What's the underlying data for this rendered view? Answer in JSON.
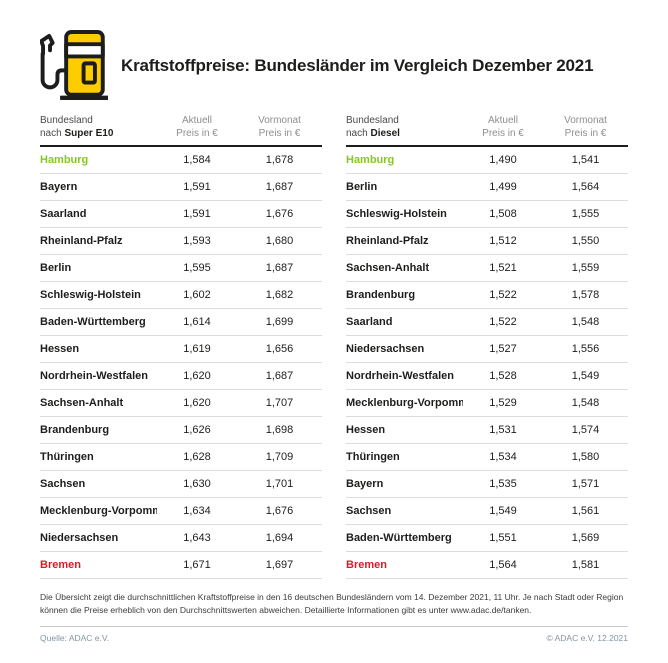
{
  "header": {
    "title": "Kraftstoffpreise: Bundesländer im Vergleich Dezember 2021",
    "icon": "fuel-pump-icon"
  },
  "colors": {
    "brand_yellow": "#ffcc00",
    "best_green": "#86c724",
    "worst_red": "#d01f27",
    "ink": "#1d1d1b",
    "muted_gray": "#8e8e8e",
    "footer_grayblue": "#8295a3"
  },
  "columns": {
    "aktuell": "Aktuell",
    "vormonat": "Vormonat",
    "unit": "Preis in €"
  },
  "tables": [
    {
      "label_line1": "Bundesland",
      "label_prefix": "nach ",
      "label_fuel": "Super E10",
      "rows": [
        {
          "state": "Hamburg",
          "aktuell": "1,584",
          "vormonat": "1,678",
          "highlight": "green"
        },
        {
          "state": "Bayern",
          "aktuell": "1,591",
          "vormonat": "1,687",
          "highlight": ""
        },
        {
          "state": "Saarland",
          "aktuell": "1,591",
          "vormonat": "1,676",
          "highlight": ""
        },
        {
          "state": "Rheinland-Pfalz",
          "aktuell": "1,593",
          "vormonat": "1,680",
          "highlight": ""
        },
        {
          "state": "Berlin",
          "aktuell": "1,595",
          "vormonat": "1,687",
          "highlight": ""
        },
        {
          "state": "Schleswig-Holstein",
          "aktuell": "1,602",
          "vormonat": "1,682",
          "highlight": ""
        },
        {
          "state": "Baden-Württemberg",
          "aktuell": "1,614",
          "vormonat": "1,699",
          "highlight": ""
        },
        {
          "state": "Hessen",
          "aktuell": "1,619",
          "vormonat": "1,656",
          "highlight": ""
        },
        {
          "state": "Nordrhein-Westfalen",
          "aktuell": "1,620",
          "vormonat": "1,687",
          "highlight": ""
        },
        {
          "state": "Sachsen-Anhalt",
          "aktuell": "1,620",
          "vormonat": "1,707",
          "highlight": ""
        },
        {
          "state": "Brandenburg",
          "aktuell": "1,626",
          "vormonat": "1,698",
          "highlight": ""
        },
        {
          "state": "Thüringen",
          "aktuell": "1,628",
          "vormonat": "1,709",
          "highlight": ""
        },
        {
          "state": "Sachsen",
          "aktuell": "1,630",
          "vormonat": "1,701",
          "highlight": ""
        },
        {
          "state": "Mecklenburg-Vorpommern",
          "aktuell": "1,634",
          "vormonat": "1,676",
          "highlight": ""
        },
        {
          "state": "Niedersachsen",
          "aktuell": "1,643",
          "vormonat": "1,694",
          "highlight": ""
        },
        {
          "state": "Bremen",
          "aktuell": "1,671",
          "vormonat": "1,697",
          "highlight": "red"
        }
      ]
    },
    {
      "label_line1": "Bundesland",
      "label_prefix": "nach ",
      "label_fuel": "Diesel",
      "rows": [
        {
          "state": "Hamburg",
          "aktuell": "1,490",
          "vormonat": "1,541",
          "highlight": "green"
        },
        {
          "state": "Berlin",
          "aktuell": "1,499",
          "vormonat": "1,564",
          "highlight": ""
        },
        {
          "state": "Schleswig-Holstein",
          "aktuell": "1,508",
          "vormonat": "1,555",
          "highlight": ""
        },
        {
          "state": "Rheinland-Pfalz",
          "aktuell": "1,512",
          "vormonat": "1,550",
          "highlight": ""
        },
        {
          "state": "Sachsen-Anhalt",
          "aktuell": "1,521",
          "vormonat": "1,559",
          "highlight": ""
        },
        {
          "state": "Brandenburg",
          "aktuell": "1,522",
          "vormonat": "1,578",
          "highlight": ""
        },
        {
          "state": "Saarland",
          "aktuell": "1,522",
          "vormonat": "1,548",
          "highlight": ""
        },
        {
          "state": "Niedersachsen",
          "aktuell": "1,527",
          "vormonat": "1,556",
          "highlight": ""
        },
        {
          "state": "Nordrhein-Westfalen",
          "aktuell": "1,528",
          "vormonat": "1,549",
          "highlight": ""
        },
        {
          "state": "Mecklenburg-Vorpommern",
          "aktuell": "1,529",
          "vormonat": "1,548",
          "highlight": ""
        },
        {
          "state": "Hessen",
          "aktuell": "1,531",
          "vormonat": "1,574",
          "highlight": ""
        },
        {
          "state": "Thüringen",
          "aktuell": "1,534",
          "vormonat": "1,580",
          "highlight": ""
        },
        {
          "state": "Bayern",
          "aktuell": "1,535",
          "vormonat": "1,571",
          "highlight": ""
        },
        {
          "state": "Sachsen",
          "aktuell": "1,549",
          "vormonat": "1,561",
          "highlight": ""
        },
        {
          "state": "Baden-Württemberg",
          "aktuell": "1,551",
          "vormonat": "1,569",
          "highlight": ""
        },
        {
          "state": "Bremen",
          "aktuell": "1,564",
          "vormonat": "1,581",
          "highlight": "red"
        }
      ]
    }
  ],
  "footnote": {
    "text": "Die Übersicht zeigt die durchschnittlichen Kraftstoffpreise in den 16 deutschen Bundesländern vom 14. Dezember 2021, 11 Uhr. Je nach Stadt oder Region können die Preise erheblich von den Durchschnittswerten abweichen. Detaillierte Informationen gibt es unter www.adac.de/tanken."
  },
  "footer": {
    "source": "Quelle: ADAC e.V.",
    "copyright": "© ADAC e.V. 12.2021"
  },
  "chart_data": [
    {
      "type": "table",
      "title": "Bundesland nach Super E10",
      "columns": [
        "Bundesland",
        "Aktuell Preis in €",
        "Vormonat Preis in €"
      ],
      "rows": [
        [
          "Hamburg",
          1.584,
          1.678
        ],
        [
          "Bayern",
          1.591,
          1.687
        ],
        [
          "Saarland",
          1.591,
          1.676
        ],
        [
          "Rheinland-Pfalz",
          1.593,
          1.68
        ],
        [
          "Berlin",
          1.595,
          1.687
        ],
        [
          "Schleswig-Holstein",
          1.602,
          1.682
        ],
        [
          "Baden-Württemberg",
          1.614,
          1.699
        ],
        [
          "Hessen",
          1.619,
          1.656
        ],
        [
          "Nordrhein-Westfalen",
          1.62,
          1.687
        ],
        [
          "Sachsen-Anhalt",
          1.62,
          1.707
        ],
        [
          "Brandenburg",
          1.626,
          1.698
        ],
        [
          "Thüringen",
          1.628,
          1.709
        ],
        [
          "Sachsen",
          1.63,
          1.701
        ],
        [
          "Mecklenburg-Vorpommern",
          1.634,
          1.676
        ],
        [
          "Niedersachsen",
          1.643,
          1.694
        ],
        [
          "Bremen",
          1.671,
          1.697
        ]
      ],
      "annotations": {
        "cheapest": "Hamburg",
        "most_expensive": "Bremen"
      }
    },
    {
      "type": "table",
      "title": "Bundesland nach Diesel",
      "columns": [
        "Bundesland",
        "Aktuell Preis in €",
        "Vormonat Preis in €"
      ],
      "rows": [
        [
          "Hamburg",
          1.49,
          1.541
        ],
        [
          "Berlin",
          1.499,
          1.564
        ],
        [
          "Schleswig-Holstein",
          1.508,
          1.555
        ],
        [
          "Rheinland-Pfalz",
          1.512,
          1.55
        ],
        [
          "Sachsen-Anhalt",
          1.521,
          1.559
        ],
        [
          "Brandenburg",
          1.522,
          1.578
        ],
        [
          "Saarland",
          1.522,
          1.548
        ],
        [
          "Niedersachsen",
          1.527,
          1.556
        ],
        [
          "Nordrhein-Westfalen",
          1.528,
          1.549
        ],
        [
          "Mecklenburg-Vorpommern",
          1.529,
          1.548
        ],
        [
          "Hessen",
          1.531,
          1.574
        ],
        [
          "Thüringen",
          1.534,
          1.58
        ],
        [
          "Bayern",
          1.535,
          1.571
        ],
        [
          "Sachsen",
          1.549,
          1.561
        ],
        [
          "Baden-Württemberg",
          1.551,
          1.569
        ],
        [
          "Bremen",
          1.564,
          1.581
        ]
      ],
      "annotations": {
        "cheapest": "Hamburg",
        "most_expensive": "Bremen"
      }
    }
  ]
}
